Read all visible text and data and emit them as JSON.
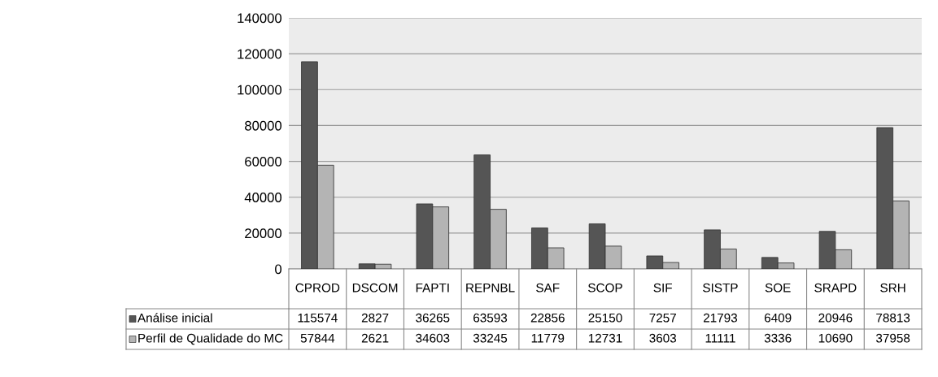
{
  "chart_data": {
    "type": "bar",
    "categories": [
      "CPROD",
      "DSCOM",
      "FAPTI",
      "REPNBL",
      "SAF",
      "SCOP",
      "SIF",
      "SISTP",
      "SOE",
      "SRAPD",
      "SRH"
    ],
    "series": [
      {
        "name": "Análise inicial",
        "color": "#555555",
        "values": [
          115574,
          2827,
          36265,
          63593,
          22856,
          25150,
          7257,
          21793,
          6409,
          20946,
          78813
        ]
      },
      {
        "name": "Perfil de Qualidade do MC",
        "color": "#b4b4b4",
        "values": [
          57844,
          2621,
          34603,
          33245,
          11779,
          12731,
          3603,
          11111,
          3336,
          10690,
          37958
        ]
      }
    ],
    "ylim": [
      0,
      140000
    ],
    "yticks": [
      0,
      20000,
      40000,
      60000,
      80000,
      100000,
      120000,
      140000
    ],
    "grid": "y",
    "legend": "bottom",
    "data_labels": true
  }
}
